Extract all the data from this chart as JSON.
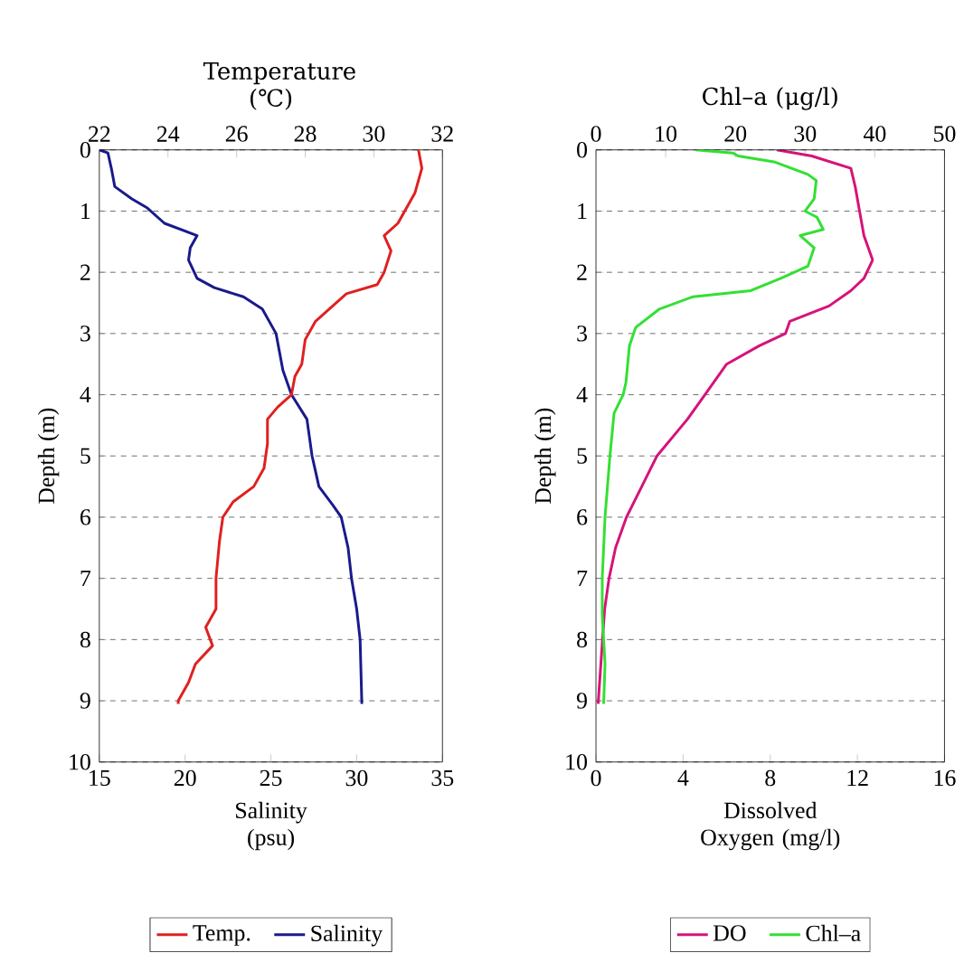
{
  "chart_data": [
    {
      "type": "line",
      "xlabel": "Salinity (psu)",
      "x2label": "Temperature (℃)",
      "ylabel": "Depth (m)",
      "xlim": [
        15,
        35
      ],
      "xticks": [
        15,
        20,
        25,
        30,
        35
      ],
      "x2lim": [
        22,
        32
      ],
      "x2ticks": [
        22,
        24,
        26,
        28,
        30,
        32
      ],
      "ylim": [
        10,
        0
      ],
      "yticks": [
        0,
        1,
        2,
        3,
        4,
        5,
        6,
        7,
        8,
        9,
        10
      ],
      "grid": "y",
      "legend": "bottom",
      "series": [
        {
          "name": "Temp.",
          "color": "#e02020",
          "axis": "x2",
          "x": [
            31.3,
            31.4,
            31.2,
            31.0,
            30.7,
            30.3,
            30.5,
            30.3,
            30.1,
            29.2,
            28.9,
            28.3,
            28.0,
            27.9,
            27.7,
            27.6,
            27.2,
            26.9,
            26.9,
            26.8,
            26.5,
            25.9,
            25.6,
            25.5,
            25.4,
            25.4,
            25.1,
            25.3,
            24.8,
            24.6,
            24.3,
            24.3
          ],
          "values": [
            0,
            0.3,
            0.7,
            0.9,
            1.2,
            1.4,
            1.65,
            2.0,
            2.2,
            2.35,
            2.5,
            2.8,
            3.1,
            3.5,
            3.7,
            4.0,
            4.2,
            4.4,
            4.8,
            5.2,
            5.5,
            5.75,
            6.0,
            6.4,
            7.0,
            7.5,
            7.8,
            8.1,
            8.4,
            8.7,
            9.0,
            9.05
          ]
        },
        {
          "name": "Salinity",
          "color": "#1a1a8c",
          "x": [
            15.0,
            15.5,
            15.7,
            15.9,
            16.9,
            17.8,
            18.8,
            20.7,
            20.3,
            20.2,
            20.7,
            21.7,
            23.4,
            24.5,
            25.3,
            25.7,
            26.2,
            27.1,
            27.4,
            27.8,
            28.6,
            29.1,
            29.5,
            29.7,
            30.0,
            30.2,
            30.3
          ],
          "values": [
            0,
            0.05,
            0.3,
            0.6,
            0.8,
            0.95,
            1.2,
            1.4,
            1.6,
            1.8,
            2.1,
            2.25,
            2.4,
            2.6,
            3.0,
            3.6,
            4.0,
            4.4,
            5.0,
            5.5,
            5.8,
            6.0,
            6.5,
            7.0,
            7.5,
            8.0,
            9.05
          ]
        }
      ]
    },
    {
      "type": "line",
      "xlabel": "Dissolved Oxygen (mg/l)",
      "x2label": "Chl–a (μg/l)",
      "ylabel": "Depth (m)",
      "xlim": [
        0,
        16
      ],
      "xticks": [
        0,
        4,
        8,
        12,
        16
      ],
      "x2lim": [
        0,
        50
      ],
      "x2ticks": [
        0,
        10,
        20,
        30,
        40,
        50
      ],
      "ylim": [
        10,
        0
      ],
      "yticks": [
        0,
        1,
        2,
        3,
        4,
        5,
        6,
        7,
        8,
        9,
        10
      ],
      "grid": "y",
      "legend": "bottom",
      "series": [
        {
          "name": "DO",
          "color": "#d6137a",
          "x": [
            8.3,
            9.9,
            11.7,
            11.9,
            12.1,
            12.3,
            12.7,
            12.3,
            11.7,
            10.7,
            8.9,
            8.7,
            7.5,
            6.0,
            5.0,
            4.2,
            2.8,
            2.1,
            1.4,
            0.9,
            0.6,
            0.4,
            0.3,
            0.1
          ],
          "values": [
            0,
            0.1,
            0.3,
            0.6,
            1.0,
            1.4,
            1.8,
            2.1,
            2.3,
            2.55,
            2.8,
            3.0,
            3.2,
            3.5,
            4.0,
            4.4,
            5.0,
            5.5,
            6.0,
            6.5,
            7.0,
            7.5,
            8.0,
            9.05
          ]
        },
        {
          "name": "Chl–a",
          "color": "#33e033",
          "axis": "x2",
          "x": [
            14.3,
            19.6,
            20.4,
            25.7,
            30.4,
            31.6,
            31.3,
            30.0,
            31.7,
            32.6,
            29.3,
            31.3,
            30.4,
            26.5,
            22.2,
            13.9,
            9.1,
            5.7,
            4.8,
            4.3,
            3.9,
            2.6,
            2.0,
            1.3,
            0.9,
            0.9,
            1.3,
            1.1
          ],
          "values": [
            0,
            0.05,
            0.1,
            0.2,
            0.4,
            0.5,
            0.8,
            1.0,
            1.1,
            1.3,
            1.4,
            1.6,
            1.9,
            2.1,
            2.3,
            2.4,
            2.6,
            2.9,
            3.2,
            3.8,
            4.0,
            4.3,
            5.0,
            6.0,
            7.0,
            7.6,
            8.4,
            9.05
          ]
        }
      ]
    }
  ]
}
